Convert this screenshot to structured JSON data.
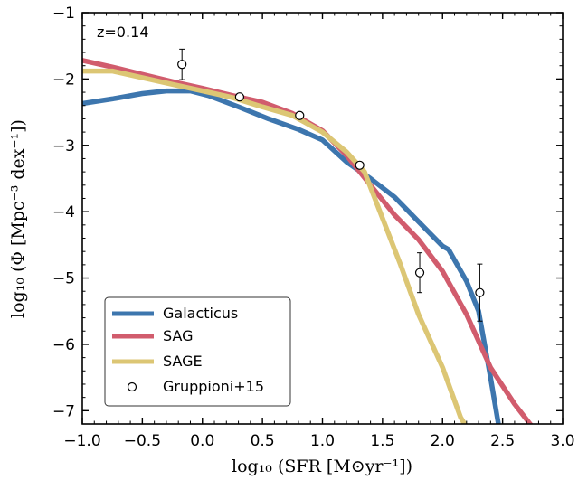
{
  "chart_data": {
    "type": "line",
    "annotation": "z=0.14",
    "xlabel": "log₁₀ (SFR [M⊙yr⁻¹])",
    "ylabel": "log₁₀ (Φ [Mpc⁻³ dex⁻¹])",
    "xlim": [
      -1.0,
      3.0
    ],
    "ylim": [
      -7.2,
      -1.0
    ],
    "x_ticks": [
      -1.0,
      -0.5,
      0.0,
      0.5,
      1.0,
      1.5,
      2.0,
      2.5,
      3.0
    ],
    "x_tick_labels": [
      "−1.0",
      "−0.5",
      "0.0",
      "0.5",
      "1.0",
      "1.5",
      "2.0",
      "2.5",
      "3.0"
    ],
    "y_ticks": [
      -7,
      -6,
      -5,
      -4,
      -3,
      -2,
      -1
    ],
    "y_tick_labels": [
      "−7",
      "−6",
      "−5",
      "−4",
      "−3",
      "−2",
      "−1"
    ],
    "grid": false,
    "legend_position": "bottom-left",
    "series": [
      {
        "name": "Galacticus",
        "color": "#3d76ae",
        "points": [
          [
            -1.0,
            -2.37
          ],
          [
            -0.75,
            -2.3
          ],
          [
            -0.5,
            -2.22
          ],
          [
            -0.3,
            -2.18
          ],
          [
            -0.1,
            -2.18
          ],
          [
            0.05,
            -2.25
          ],
          [
            0.3,
            -2.42
          ],
          [
            0.55,
            -2.6
          ],
          [
            0.8,
            -2.76
          ],
          [
            1.0,
            -2.92
          ],
          [
            1.2,
            -3.25
          ],
          [
            1.4,
            -3.5
          ],
          [
            1.6,
            -3.78
          ],
          [
            1.8,
            -4.15
          ],
          [
            2.0,
            -4.52
          ],
          [
            2.05,
            -4.57
          ],
          [
            2.2,
            -5.05
          ],
          [
            2.3,
            -5.5
          ],
          [
            2.4,
            -6.5
          ],
          [
            2.47,
            -7.25
          ]
        ]
      },
      {
        "name": "SAG",
        "color": "#d15c6d",
        "points": [
          [
            -1.0,
            -1.72
          ],
          [
            -0.75,
            -1.82
          ],
          [
            -0.5,
            -1.93
          ],
          [
            -0.25,
            -2.04
          ],
          [
            0.0,
            -2.14
          ],
          [
            0.25,
            -2.25
          ],
          [
            0.5,
            -2.35
          ],
          [
            0.75,
            -2.52
          ],
          [
            1.0,
            -2.78
          ],
          [
            1.2,
            -3.15
          ],
          [
            1.4,
            -3.6
          ],
          [
            1.6,
            -4.05
          ],
          [
            1.8,
            -4.42
          ],
          [
            2.0,
            -4.9
          ],
          [
            2.2,
            -5.55
          ],
          [
            2.4,
            -6.35
          ],
          [
            2.6,
            -6.9
          ],
          [
            2.75,
            -7.25
          ]
        ]
      },
      {
        "name": "SAGE",
        "color": "#dcc674",
        "points": [
          [
            -1.0,
            -1.88
          ],
          [
            -0.75,
            -1.88
          ],
          [
            -0.5,
            -1.98
          ],
          [
            -0.25,
            -2.08
          ],
          [
            0.0,
            -2.18
          ],
          [
            0.25,
            -2.28
          ],
          [
            0.5,
            -2.42
          ],
          [
            0.75,
            -2.55
          ],
          [
            1.0,
            -2.8
          ],
          [
            1.2,
            -3.1
          ],
          [
            1.35,
            -3.4
          ],
          [
            1.5,
            -4.1
          ],
          [
            1.65,
            -4.8
          ],
          [
            1.8,
            -5.55
          ],
          [
            2.0,
            -6.35
          ],
          [
            2.15,
            -7.1
          ],
          [
            2.2,
            -7.25
          ]
        ]
      }
    ],
    "observations": {
      "name": "Gruppioni+15",
      "points": [
        {
          "x": -0.17,
          "y": -1.78,
          "yerr": 0.23
        },
        {
          "x": 0.31,
          "y": -2.27,
          "yerr": 0.03
        },
        {
          "x": 0.81,
          "y": -2.55,
          "yerr": 0.04
        },
        {
          "x": 1.31,
          "y": -3.3,
          "yerr": 0.03
        },
        {
          "x": 1.81,
          "y": -4.92,
          "yerr": 0.3
        },
        {
          "x": 2.31,
          "y": -5.22,
          "yerr": 0.43
        }
      ]
    }
  }
}
